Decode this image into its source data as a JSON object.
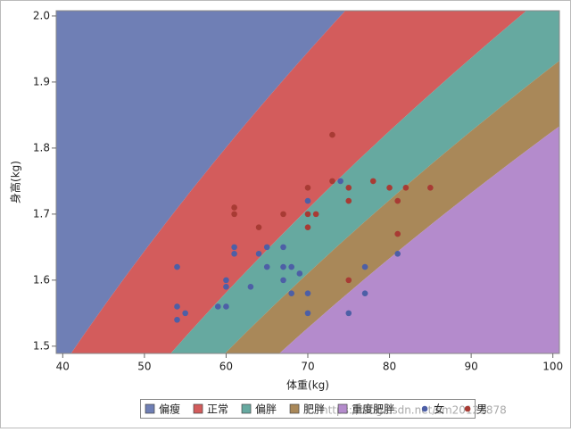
{
  "chart_data": {
    "type": "scatter",
    "xlabel": "体重(kg)",
    "ylabel": "身高(kg)",
    "xlim": [
      39.2,
      100.8
    ],
    "ylim": [
      1.489,
      2.008
    ],
    "xticks": [
      40,
      50,
      60,
      70,
      80,
      90,
      100
    ],
    "yticks": [
      1.5,
      1.6,
      1.7,
      1.8,
      1.9,
      {
        "value": 2,
        "label": "2.0"
      }
    ],
    "bands": [
      {
        "name": "偏瘦",
        "color": "#6f7fb5",
        "bmi_max": 18.5
      },
      {
        "name": "正常",
        "color": "#d35c5c",
        "bmi_max": 24
      },
      {
        "name": "偏胖",
        "color": "#66a9a0",
        "bmi_max": 27
      },
      {
        "name": "肥胖",
        "color": "#a98859",
        "bmi_max": 30
      },
      {
        "name": "重度肥胖",
        "color": "#b48bcc"
      }
    ],
    "series": [
      {
        "name": "女",
        "color": "#4d5fa6",
        "x": [
          54,
          54,
          54,
          55,
          59,
          60,
          60,
          60,
          61,
          61,
          63,
          64,
          65,
          65,
          67,
          67,
          67,
          68,
          68,
          69,
          70,
          70,
          70,
          74,
          75,
          77,
          77,
          81
        ],
        "values": [
          1.62,
          1.56,
          1.54,
          1.55,
          1.56,
          1.56,
          1.6,
          1.59,
          1.65,
          1.64,
          1.59,
          1.64,
          1.65,
          1.62,
          1.65,
          1.62,
          1.6,
          1.62,
          1.58,
          1.61,
          1.72,
          1.58,
          1.55,
          1.75,
          1.55,
          1.62,
          1.58,
          1.64
        ]
      },
      {
        "name": "男",
        "color": "#a83b34",
        "x": [
          61,
          61,
          64,
          67,
          70,
          70,
          70,
          71,
          73,
          73,
          75,
          75,
          75,
          78,
          80,
          81,
          81,
          82,
          85
        ],
        "values": [
          1.71,
          1.7,
          1.68,
          1.7,
          1.74,
          1.7,
          1.68,
          1.7,
          1.82,
          1.75,
          1.74,
          1.72,
          1.6,
          1.75,
          1.74,
          1.72,
          1.67,
          1.74,
          1.74
        ]
      }
    ],
    "watermark": "https://blog.csdn.net/cm20121878"
  }
}
